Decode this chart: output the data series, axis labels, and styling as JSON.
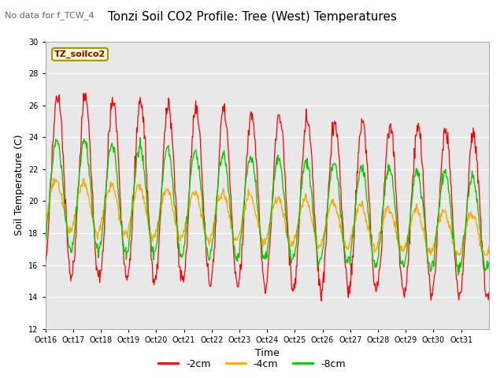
{
  "title": "Tonzi Soil CO2 Profile: Tree (West) Temperatures",
  "subtitle": "No data for f_TCW_4",
  "xlabel": "Time",
  "ylabel": "Soil Temperature (C)",
  "ylim": [
    12,
    30
  ],
  "yticks": [
    12,
    14,
    16,
    18,
    20,
    22,
    24,
    26,
    28,
    30
  ],
  "xlabels": [
    "Oct 16",
    "Oct 17",
    "Oct 18",
    "Oct 19",
    "Oct 20",
    "Oct 21",
    "Oct 22",
    "Oct 23",
    "Oct 24",
    "Oct 25",
    "Oct 26",
    "Oct 27",
    "Oct 28",
    "Oct 29",
    "Oct 30",
    "Oct 31"
  ],
  "legend_label": "TZ_soilco2",
  "colors": {
    "neg2cm": "#FF0000",
    "neg4cm": "#FFA500",
    "neg8cm": "#00CC00"
  },
  "series_labels": [
    "-2cm",
    "-4cm",
    "-8cm"
  ],
  "plot_bg_color": "#E8E8E8",
  "title_fontsize": 11,
  "subtitle_fontsize": 8,
  "axis_label_fontsize": 9,
  "tick_fontsize": 7,
  "legend_fontsize": 9
}
